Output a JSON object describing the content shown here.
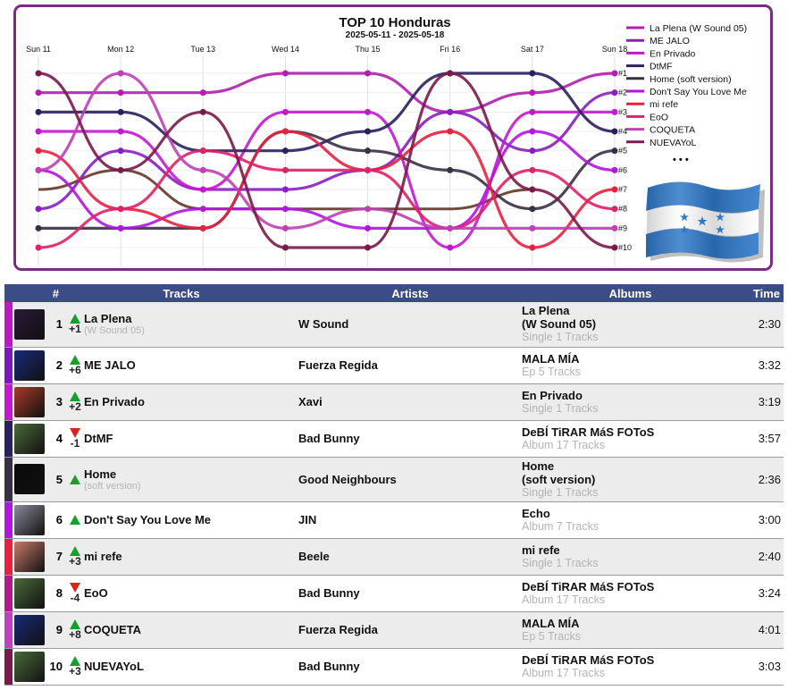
{
  "chart_data": {
    "type": "line",
    "title": "TOP 10 Honduras",
    "subtitle": "2025-05-11 - 2025-05-18",
    "categories": [
      "Sun 11",
      "Mon 12",
      "Tue 13",
      "Wed 14",
      "Thu 15",
      "Fri 16",
      "Sat 17",
      "Sun 18"
    ],
    "rank_labels": [
      "#1",
      "#2",
      "#3",
      "#4",
      "#5",
      "#6",
      "#7",
      "#8",
      "#9",
      "#10"
    ],
    "y_axis": "rank",
    "ylim": [
      1,
      10
    ],
    "legend_position": "top-right",
    "legend_more": "• • •",
    "series": [
      {
        "name": "La Plena (W Sound 05)",
        "color": "#b01fb0",
        "ranks": [
          2,
          2,
          2,
          1,
          1,
          3,
          2,
          1
        ]
      },
      {
        "name": "ME JALO",
        "color": "#8a1fc0",
        "ranks": [
          8,
          5,
          7,
          7,
          6,
          3,
          5,
          2
        ]
      },
      {
        "name": "En Privado",
        "color": "#c418d0",
        "ranks": [
          4,
          4,
          7,
          3,
          3,
          10,
          3,
          3
        ]
      },
      {
        "name": "DtMF",
        "color": "#2a2060",
        "ranks": [
          3,
          3,
          5,
          5,
          4,
          1,
          1,
          4
        ]
      },
      {
        "name": "Home (soft version)",
        "color": "#3a3046",
        "ranks": [
          9,
          9,
          9,
          4,
          5,
          6,
          8,
          5
        ]
      },
      {
        "name": "Don't Say You Love Me",
        "color": "#b016e0",
        "ranks": [
          6,
          9,
          8,
          8,
          9,
          9,
          4,
          6
        ]
      },
      {
        "name": "mi refe",
        "color": "#e82040",
        "ranks": [
          5,
          8,
          9,
          4,
          6,
          4,
          10,
          7
        ]
      },
      {
        "name": "EoO",
        "color": "#e0206a",
        "ranks": [
          10,
          8,
          5,
          6,
          6,
          9,
          6,
          8
        ]
      },
      {
        "name": "COQUETA",
        "color": "#c040b4",
        "ranks": [
          6,
          1,
          6,
          9,
          8,
          9,
          9,
          9
        ]
      },
      {
        "name": "NUEVAYoL",
        "color": "#7a1a4a",
        "ranks": [
          1,
          6,
          3,
          10,
          10,
          1,
          7,
          10
        ]
      }
    ],
    "partial_lines": [
      {
        "color": "#5a2a1a",
        "ranks": [
          7,
          6,
          8,
          8,
          8,
          8,
          7
        ]
      }
    ]
  },
  "table": {
    "headers": {
      "rank": "#",
      "tracks": "Tracks",
      "artists": "Artists",
      "albums": "Albums",
      "time": "Time"
    },
    "rows": [
      {
        "rank": "1",
        "trend": "up",
        "delta": "+1",
        "title": "La Plena",
        "subtitle": "(W Sound 05)",
        "artist": "W Sound",
        "album": "La Plena",
        "album_line2": "(W Sound 05)",
        "album_sub": "Single 1 Tracks",
        "time": "2:30",
        "color": "#c018c0",
        "cover": "#2a1a3a"
      },
      {
        "rank": "2",
        "trend": "up",
        "delta": "+6",
        "title": "ME JALO",
        "subtitle": "",
        "artist": "Fuerza Regida",
        "album": "MALA MÍA",
        "album_line2": "",
        "album_sub": "Ep 5 Tracks",
        "time": "3:32",
        "color": "#7a1ab8",
        "cover": "#1a2a7a"
      },
      {
        "rank": "3",
        "trend": "up",
        "delta": "+2",
        "title": "En Privado",
        "subtitle": "",
        "artist": "Xavi",
        "album": "En Privado",
        "album_line2": "",
        "album_sub": "Single 1 Tracks",
        "time": "3:19",
        "color": "#c418d0",
        "cover": "#a83a2a"
      },
      {
        "rank": "4",
        "trend": "down",
        "delta": "-1",
        "title": "DtMF",
        "subtitle": "",
        "artist": "Bad Bunny",
        "album": "DeBÍ TiRAR MáS FOToS",
        "album_line2": "",
        "album_sub": "Album 17 Tracks",
        "time": "3:57",
        "color": "#2a2060",
        "cover": "#4a6a3a"
      },
      {
        "rank": "5",
        "trend": "up",
        "delta": "",
        "title": "Home",
        "subtitle": "(soft version)",
        "artist": "Good Neighbours",
        "album": "Home",
        "album_line2": "(soft version)",
        "album_sub": "Single 1 Tracks",
        "time": "2:36",
        "color": "#3a3046",
        "cover": "#0a0a0a"
      },
      {
        "rank": "6",
        "trend": "up",
        "delta": "",
        "title": "Don't Say You Love Me",
        "subtitle": "",
        "artist": "JIN",
        "album": "Echo",
        "album_line2": "",
        "album_sub": "Album 7 Tracks",
        "time": "3:00",
        "color": "#b016e0",
        "cover": "#8a8a9a"
      },
      {
        "rank": "7",
        "trend": "up",
        "delta": "+3",
        "title": "mi refe",
        "subtitle": "",
        "artist": "Beele",
        "album": "mi refe",
        "album_line2": "",
        "album_sub": "Single 1 Tracks",
        "time": "2:40",
        "color": "#e82040",
        "cover": "#c87a6a"
      },
      {
        "rank": "8",
        "trend": "down",
        "delta": "-4",
        "title": "EoO",
        "subtitle": "",
        "artist": "Bad Bunny",
        "album": "DeBÍ TiRAR MáS FOToS",
        "album_line2": "",
        "album_sub": "Album 17 Tracks",
        "time": "3:24",
        "color": "#b01a8a",
        "cover": "#4a6a3a"
      },
      {
        "rank": "9",
        "trend": "up",
        "delta": "+8",
        "title": "COQUETA",
        "subtitle": "",
        "artist": "Fuerza Regida",
        "album": "MALA MÍA",
        "album_line2": "",
        "album_sub": "Ep 5 Tracks",
        "time": "4:01",
        "color": "#c040c0",
        "cover": "#1a2a7a"
      },
      {
        "rank": "10",
        "trend": "up",
        "delta": "+3",
        "title": "NUEVAYoL",
        "subtitle": "",
        "artist": "Bad Bunny",
        "album": "DeBÍ TiRAR MáS FOToS",
        "album_line2": "",
        "album_sub": "Album 17 Tracks",
        "time": "3:03",
        "color": "#7a1a4a",
        "cover": "#4a6a3a"
      }
    ]
  }
}
